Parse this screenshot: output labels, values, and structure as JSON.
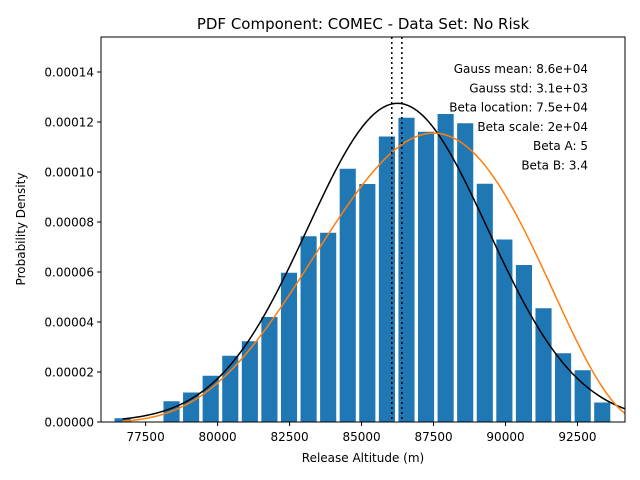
{
  "chart_data": {
    "type": "bar",
    "title": "PDF Component: COMEC - Data Set: No Risk",
    "xlabel": "Release Altitude (m)",
    "ylabel": "Probability Density",
    "xlim": [
      75950,
      94150
    ],
    "ylim": [
      0,
      0.000154
    ],
    "xticks": [
      77500,
      80000,
      82500,
      85000,
      87500,
      90000,
      92500
    ],
    "yticks": [
      0.0,
      2e-05,
      4e-05,
      6e-05,
      8e-05,
      0.0001,
      0.00012,
      0.00014
    ],
    "xtick_labels": [
      "77500",
      "80000",
      "82500",
      "85000",
      "87500",
      "90000",
      "92500"
    ],
    "ytick_labels": [
      "0.00000",
      "0.00002",
      "0.00004",
      "0.00006",
      "0.00008",
      "0.00010",
      "0.00012",
      "0.00014"
    ],
    "bar_width": 560,
    "bar_color": "#1f77b4",
    "bars": [
      {
        "x": 76700,
        "value": 1.5e-06
      },
      {
        "x": 78400,
        "value": 8.3e-06
      },
      {
        "x": 79080,
        "value": 1.18e-05
      },
      {
        "x": 79760,
        "value": 1.85e-05
      },
      {
        "x": 80440,
        "value": 2.65e-05
      },
      {
        "x": 81120,
        "value": 3.23e-05
      },
      {
        "x": 81800,
        "value": 4.2e-05
      },
      {
        "x": 82480,
        "value": 5.97e-05
      },
      {
        "x": 83160,
        "value": 7.43e-05
      },
      {
        "x": 83840,
        "value": 7.57e-05
      },
      {
        "x": 84520,
        "value": 0.0001013
      },
      {
        "x": 85200,
        "value": 9.52e-05
      },
      {
        "x": 85880,
        "value": 0.0001142
      },
      {
        "x": 86560,
        "value": 0.0001217
      },
      {
        "x": 87240,
        "value": 0.0001161
      },
      {
        "x": 87920,
        "value": 0.0001232
      },
      {
        "x": 88600,
        "value": 0.0001195
      },
      {
        "x": 89280,
        "value": 9.53e-05
      },
      {
        "x": 89960,
        "value": 7.3e-05
      },
      {
        "x": 90640,
        "value": 6.28e-05
      },
      {
        "x": 91320,
        "value": 4.55e-05
      },
      {
        "x": 92000,
        "value": 2.75e-05
      },
      {
        "x": 92680,
        "value": 2.07e-05
      },
      {
        "x": 93360,
        "value": 7.8e-06
      }
    ],
    "gauss": {
      "mean": 86250,
      "std": 3130,
      "color": "#000000"
    },
    "beta": {
      "a": 5,
      "b": 3.4,
      "loc": 75000,
      "scale": 20000,
      "color": "#ff7f0e"
    },
    "vlines": [
      86050,
      86400
    ],
    "curve_x_start": 76700,
    "annotations": [
      "Gauss mean: 8.6e+04",
      "Gauss std: 3.1e+03",
      "Beta location: 7.5e+04",
      "Beta scale: 2e+04",
      "Beta A: 5",
      "Beta B: 3.4"
    ]
  }
}
